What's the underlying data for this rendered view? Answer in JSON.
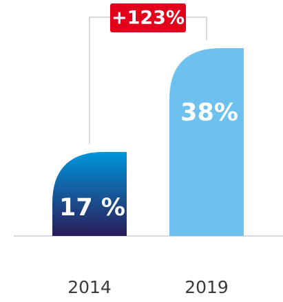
{
  "chart_data": {
    "type": "bar",
    "categories": [
      "2014",
      "2019"
    ],
    "values": [
      17,
      38
    ],
    "value_labels": [
      "17 %",
      "38%"
    ],
    "colors": [
      [
        "#0096dc",
        "#2a1c58"
      ],
      [
        "#6ec1ee",
        "#6ec1ee"
      ]
    ],
    "annotation": "+123%",
    "annotation_color": "#e2001a"
  }
}
